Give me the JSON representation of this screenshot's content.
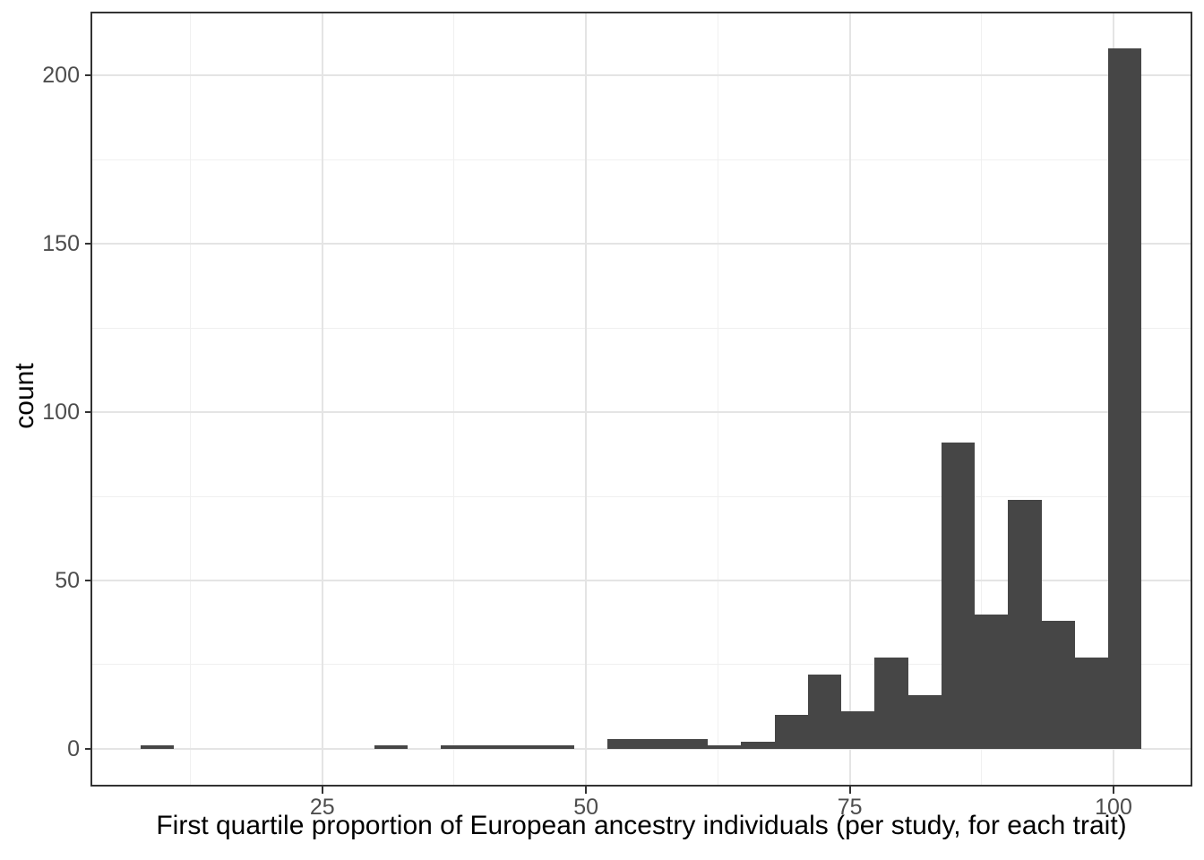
{
  "chart_data": {
    "type": "bar",
    "subtype": "histogram",
    "title": "",
    "xlabel": "First quartile proportion of European ancestry individuals (per study, for each trait)",
    "ylabel": "count",
    "x_ticks": [
      25,
      50,
      75,
      100
    ],
    "x_minor_ticks": [
      12.5,
      37.5,
      62.5,
      87.5
    ],
    "y_ticks": [
      0,
      50,
      100,
      150,
      200
    ],
    "y_minor_ticks": [
      25,
      75,
      125,
      175
    ],
    "xlim": [
      3.2,
      107.3
    ],
    "ylim": [
      -10.7,
      218.5
    ],
    "legend": "none",
    "grid": "on",
    "total_count": 582,
    "bins": [
      {
        "x0": 7.76,
        "x1": 10.93,
        "count": 1
      },
      {
        "x0": 10.93,
        "x1": 14.09,
        "count": 0
      },
      {
        "x0": 14.09,
        "x1": 17.25,
        "count": 0
      },
      {
        "x0": 17.25,
        "x1": 20.42,
        "count": 0
      },
      {
        "x0": 20.42,
        "x1": 23.58,
        "count": 0
      },
      {
        "x0": 23.58,
        "x1": 26.74,
        "count": 0
      },
      {
        "x0": 26.74,
        "x1": 29.91,
        "count": 0
      },
      {
        "x0": 29.91,
        "x1": 33.07,
        "count": 1
      },
      {
        "x0": 33.07,
        "x1": 36.23,
        "count": 0
      },
      {
        "x0": 36.23,
        "x1": 39.4,
        "count": 1
      },
      {
        "x0": 39.4,
        "x1": 42.56,
        "count": 1
      },
      {
        "x0": 42.56,
        "x1": 45.72,
        "count": 1
      },
      {
        "x0": 45.72,
        "x1": 48.89,
        "count": 1
      },
      {
        "x0": 48.89,
        "x1": 52.05,
        "count": 0
      },
      {
        "x0": 52.05,
        "x1": 55.21,
        "count": 3
      },
      {
        "x0": 55.21,
        "x1": 58.38,
        "count": 3
      },
      {
        "x0": 58.38,
        "x1": 61.54,
        "count": 3
      },
      {
        "x0": 61.54,
        "x1": 64.7,
        "count": 1
      },
      {
        "x0": 64.7,
        "x1": 67.87,
        "count": 2
      },
      {
        "x0": 67.87,
        "x1": 71.03,
        "count": 10
      },
      {
        "x0": 71.03,
        "x1": 74.19,
        "count": 22
      },
      {
        "x0": 74.19,
        "x1": 77.36,
        "count": 11
      },
      {
        "x0": 77.36,
        "x1": 80.52,
        "count": 27
      },
      {
        "x0": 80.52,
        "x1": 83.68,
        "count": 16
      },
      {
        "x0": 83.68,
        "x1": 86.85,
        "count": 91
      },
      {
        "x0": 86.85,
        "x1": 90.01,
        "count": 40
      },
      {
        "x0": 90.01,
        "x1": 93.17,
        "count": 74
      },
      {
        "x0": 93.17,
        "x1": 96.34,
        "count": 38
      },
      {
        "x0": 96.34,
        "x1": 99.5,
        "count": 27
      },
      {
        "x0": 99.5,
        "x1": 102.66,
        "count": 208
      }
    ],
    "colors": {
      "bar_fill": "#464646",
      "grid_major": "#e4e4e4",
      "grid_minor": "#f0f0f0",
      "panel_border": "#333333",
      "panel_background": "#ffffff",
      "tick_mark": "#333333",
      "tick_label": "#4d4d4d",
      "axis_title": "#000000"
    }
  }
}
